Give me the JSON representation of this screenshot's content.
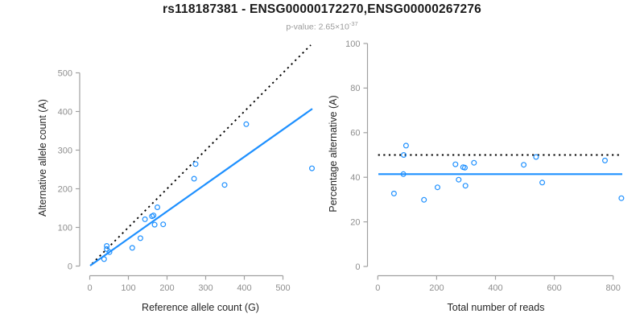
{
  "header": {
    "title": "rs118187381 - ENSG00000172270,ENSG00000267276",
    "pvalue_label": "p-value: ",
    "pvalue_mantissa": "2.65×10",
    "pvalue_exponent": "-37"
  },
  "colors": {
    "background": "#ffffff",
    "accent_blue": "#1E90FF",
    "dotted_black": "#000000",
    "axis_line": "#a0a0a0",
    "tick_label": "#8e8e8e",
    "axis_title": "#262626",
    "title_text": "#1a1a1a",
    "subtitle_text": "#9a9a9a"
  },
  "chart_data": [
    {
      "name": "allele-count-scatter",
      "type": "scatter",
      "xlabel": "Reference allele count (G)",
      "ylabel": "Alternative allele count (A)",
      "xticks": [
        0,
        100,
        200,
        300,
        400,
        500
      ],
      "yticks": [
        0,
        100,
        200,
        300,
        400,
        500
      ],
      "xlim": [
        0,
        580
      ],
      "ylim": [
        0,
        575
      ],
      "grid": false,
      "points": [
        [
          37,
          18
        ],
        [
          44,
          44
        ],
        [
          44,
          52
        ],
        [
          51,
          36
        ],
        [
          110,
          47
        ],
        [
          131,
          72
        ],
        [
          143,
          121
        ],
        [
          161,
          129
        ],
        [
          165,
          131
        ],
        [
          168,
          107
        ],
        [
          175,
          152
        ],
        [
          190,
          108
        ],
        [
          270,
          226
        ],
        [
          274,
          264
        ],
        [
          349,
          210
        ],
        [
          405,
          367
        ],
        [
          575,
          253
        ]
      ],
      "lines": [
        {
          "name": "identity-line",
          "style": "dotted",
          "color": "#000000",
          "from": [
            6,
            6
          ],
          "to": [
            572,
            572
          ]
        },
        {
          "name": "fit-line",
          "style": "solid",
          "color": "#1E90FF",
          "from": [
            1,
            1
          ],
          "to": [
            576,
            407
          ]
        }
      ]
    },
    {
      "name": "percentage-scatter",
      "type": "scatter",
      "xlabel": "Total number of reads",
      "ylabel": "Percentage alternative (A)",
      "xticks": [
        0,
        200,
        400,
        600,
        800
      ],
      "yticks": [
        0,
        20,
        40,
        60,
        80,
        100
      ],
      "xlim": [
        0,
        840
      ],
      "ylim": [
        0,
        100
      ],
      "grid": false,
      "points": [
        [
          55,
          32.7
        ],
        [
          88,
          50.0
        ],
        [
          96,
          54.2
        ],
        [
          87,
          41.4
        ],
        [
          157,
          29.9
        ],
        [
          203,
          35.5
        ],
        [
          264,
          45.8
        ],
        [
          290,
          44.5
        ],
        [
          296,
          44.3
        ],
        [
          275,
          38.9
        ],
        [
          327,
          46.5
        ],
        [
          298,
          36.2
        ],
        [
          496,
          45.6
        ],
        [
          538,
          49.1
        ],
        [
          559,
          37.6
        ],
        [
          772,
          47.5
        ],
        [
          828,
          30.6
        ]
      ],
      "lines": [
        {
          "name": "expected-50pct-line",
          "style": "dotted",
          "color": "#000000",
          "y": 50,
          "x_range": [
            1,
            830
          ]
        },
        {
          "name": "fit-line",
          "style": "solid",
          "color": "#1E90FF",
          "y": 41.4,
          "x_range": [
            2,
            831
          ]
        }
      ]
    }
  ]
}
